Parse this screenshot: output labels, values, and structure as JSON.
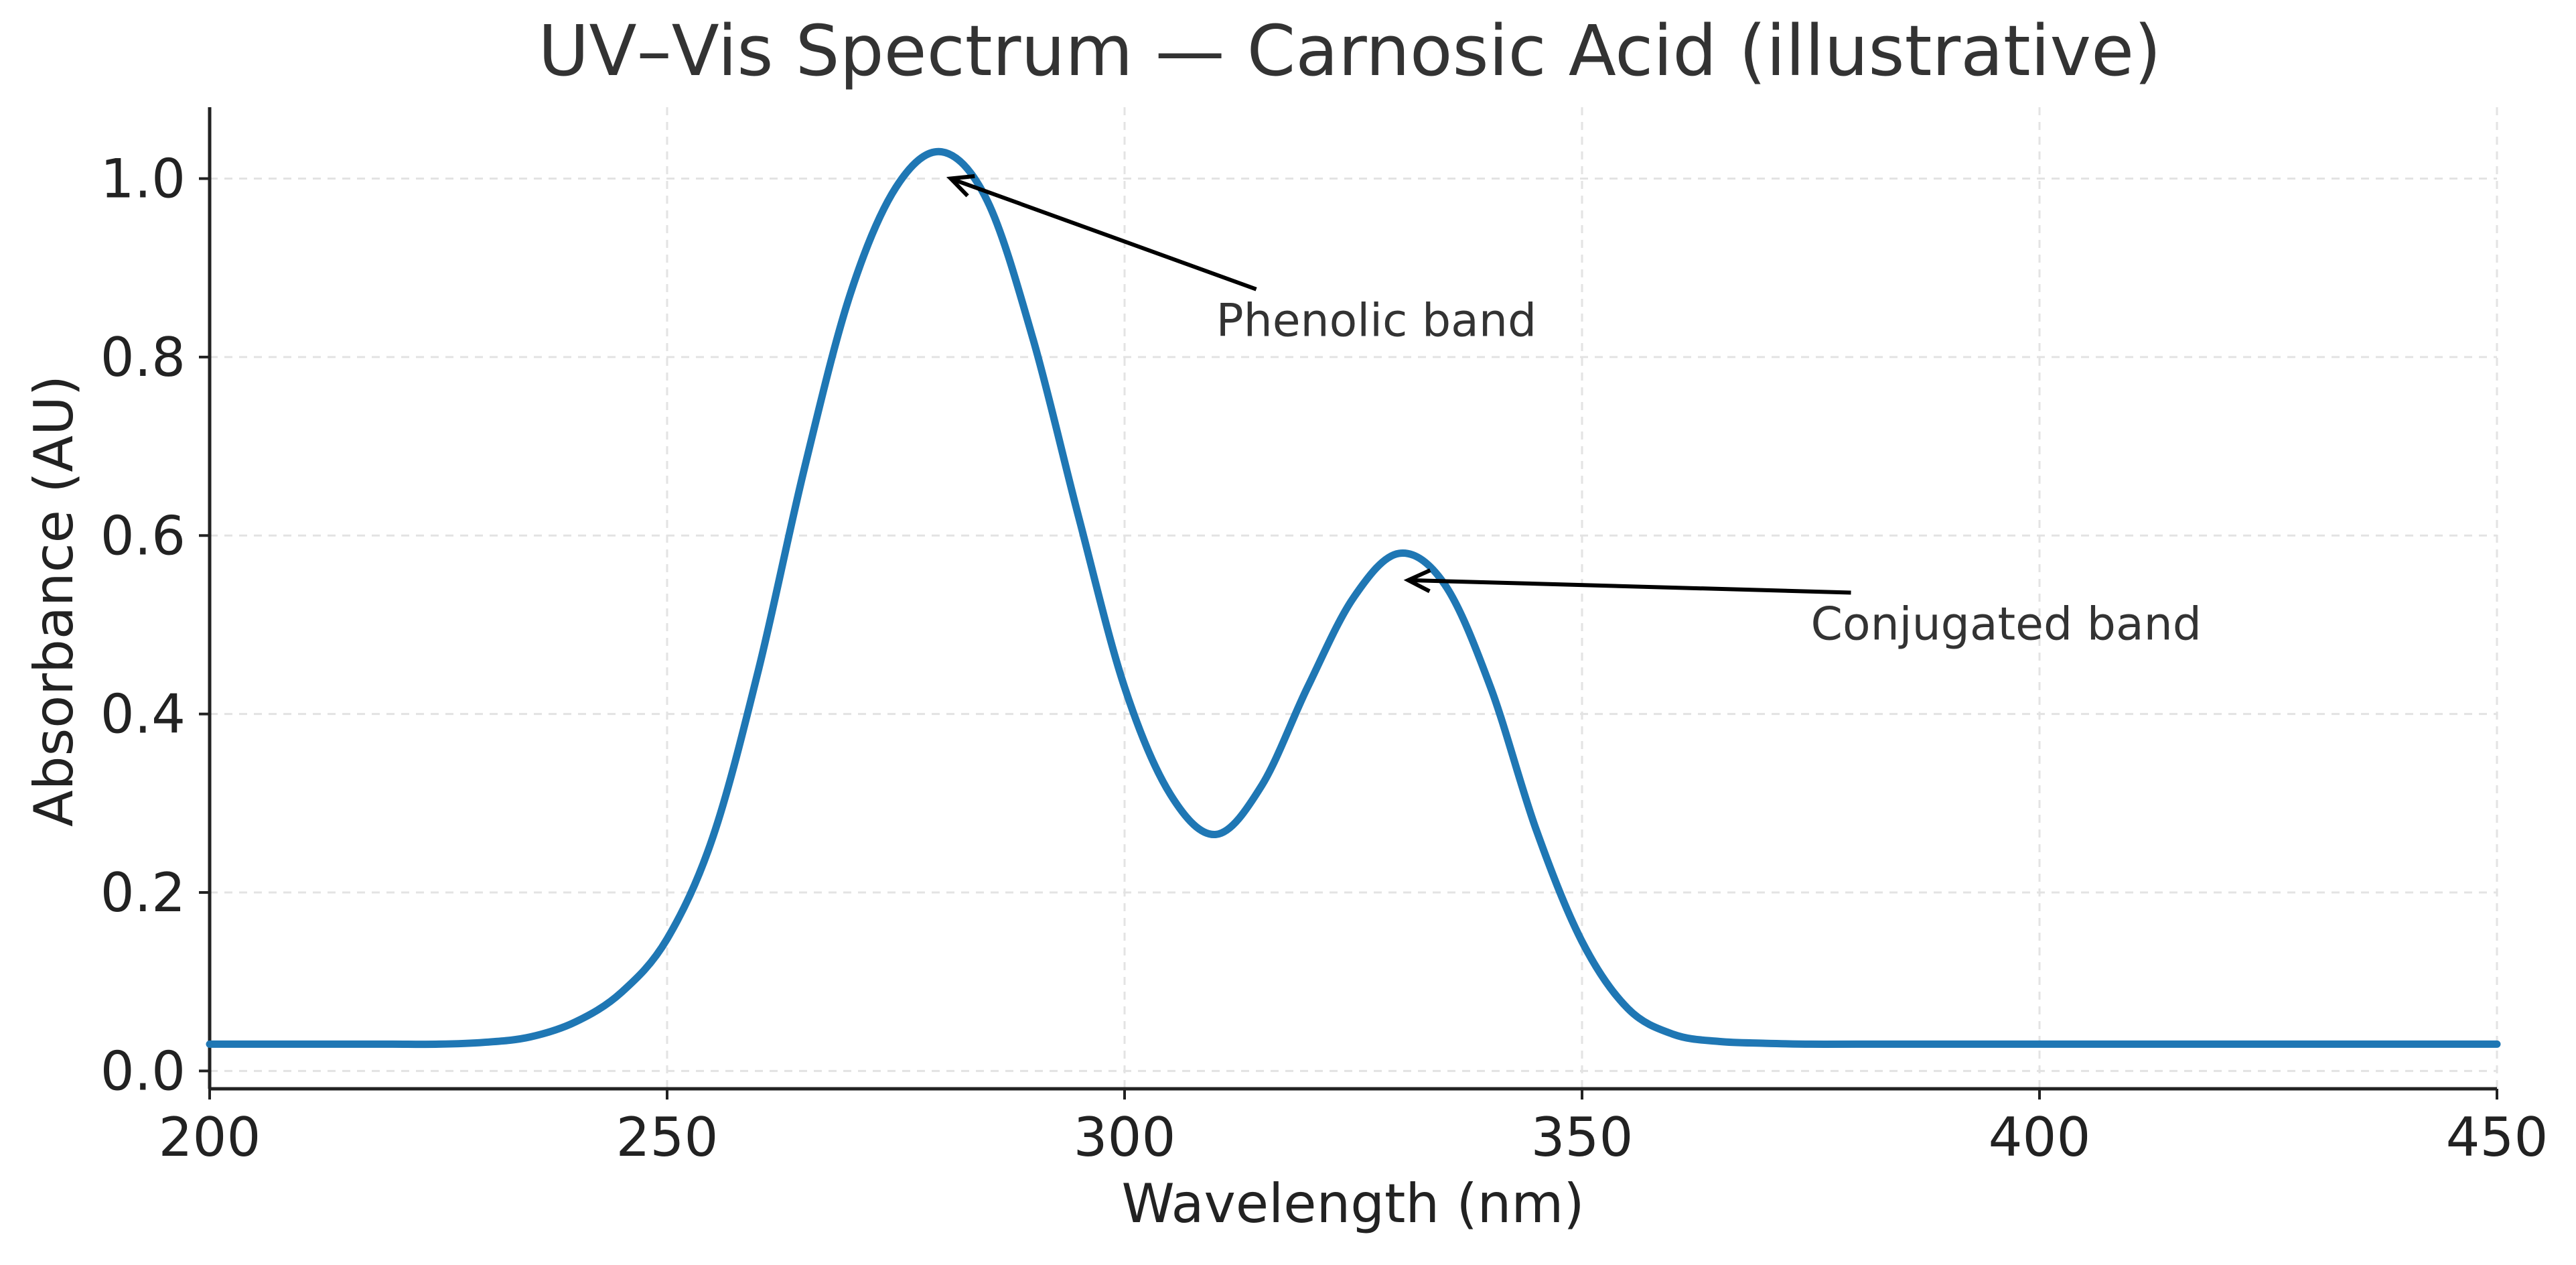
{
  "chart_data": {
    "type": "line",
    "title": "UV–Vis Spectrum — Carnosic Acid (illustrative)",
    "xlabel": "Wavelength (nm)",
    "ylabel": "Absorbance (AU)",
    "xlim": [
      200,
      450
    ],
    "ylim": [
      -0.02,
      1.08
    ],
    "grid": true,
    "x_ticks": [
      200,
      250,
      300,
      350,
      400,
      450
    ],
    "x_tick_labels": [
      "200",
      "250",
      "300",
      "350",
      "400",
      "450"
    ],
    "y_ticks": [
      0.0,
      0.2,
      0.4,
      0.6,
      0.8,
      1.0
    ],
    "y_tick_labels": [
      "0.0",
      "0.2",
      "0.4",
      "0.6",
      "0.8",
      "1.0"
    ],
    "series": [
      {
        "name": "Carnosic Acid",
        "color": "#1f77b4",
        "x": [
          200,
          205,
          210,
          215,
          220,
          225,
          230,
          235,
          240,
          245,
          250,
          255,
          260,
          265,
          270,
          275,
          280,
          285,
          290,
          295,
          300,
          305,
          310,
          315,
          320,
          325,
          330,
          335,
          340,
          345,
          350,
          355,
          360,
          365,
          370,
          375,
          380,
          390,
          400,
          410,
          420,
          430,
          440,
          450
        ],
        "values": [
          0.03,
          0.03,
          0.03,
          0.03,
          0.03,
          0.03,
          0.032,
          0.038,
          0.055,
          0.088,
          0.148,
          0.262,
          0.45,
          0.675,
          0.87,
          0.99,
          1.03,
          0.975,
          0.82,
          0.62,
          0.43,
          0.31,
          0.265,
          0.32,
          0.43,
          0.53,
          0.58,
          0.545,
          0.43,
          0.27,
          0.145,
          0.07,
          0.041,
          0.033,
          0.031,
          0.03,
          0.03,
          0.03,
          0.03,
          0.03,
          0.03,
          0.03,
          0.03,
          0.03
        ]
      }
    ],
    "annotations": [
      {
        "text": "Phenolic band",
        "point": [
          281,
          1.0
        ],
        "text_pos": [
          310,
          0.84
        ]
      },
      {
        "text": "Conjugated band",
        "point": [
          331,
          0.55
        ],
        "text_pos": [
          375,
          0.5
        ]
      }
    ]
  }
}
